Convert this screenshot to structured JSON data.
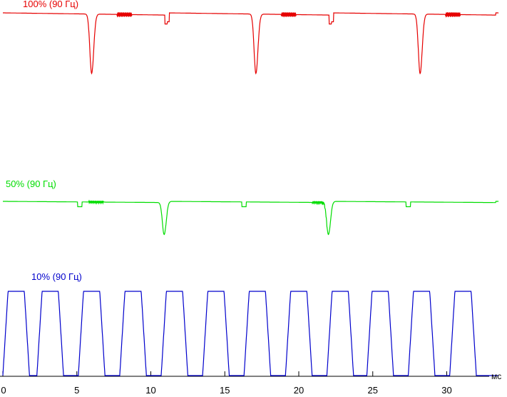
{
  "chart_data": {
    "type": "line",
    "xlabel": "мс",
    "xlim": [
      0,
      33.5
    ],
    "x_ticks": [
      0,
      5,
      10,
      15,
      20,
      25,
      30
    ],
    "x_tick_labels": [
      "0",
      "5",
      "10",
      "15",
      "20",
      "25",
      "30"
    ],
    "grid": false,
    "series": [
      {
        "name": "100% (90 Гц)",
        "color": "#e60000",
        "label_text": "100% (90 Гц)",
        "pattern": "bright_with_dips",
        "dip_centers_ms": [
          6.0,
          17.1,
          28.2
        ],
        "dip_depth": 0.8,
        "glitch_centers_ms": [
          11.1,
          22.2
        ],
        "ripple_centers_ms": [
          8.2,
          19.3,
          30.4
        ]
      },
      {
        "name": "50% (90 Гц)",
        "color": "#00dd00",
        "label_text": "50% (90 Гц)",
        "pattern": "bright_with_dips",
        "dip_centers_ms": [
          10.9,
          22.0
        ],
        "dip_depth": 0.8,
        "glitch_centers_ms": [
          5.2,
          16.3,
          27.4
        ],
        "ripple_centers_ms": [
          6.3,
          21.4
        ]
      },
      {
        "name": "10% (90 Гц)",
        "color": "#0000cc",
        "label_text": "10% (90 Гц)",
        "pattern": "pulses",
        "pulse_starts_ms": [
          0.0,
          2.3,
          5.1,
          7.9,
          10.7,
          13.5,
          16.3,
          19.1,
          21.9,
          24.6,
          27.4,
          30.2
        ],
        "pulse_width_ms": 1.8,
        "duty_note": "on ~50% of each ~2.78 ms period"
      }
    ]
  }
}
